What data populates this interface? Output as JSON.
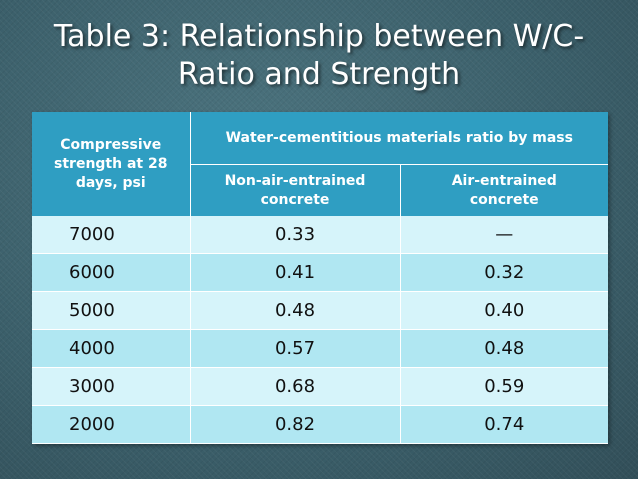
{
  "title": {
    "line1": "Table 3: Relationship between W/C-",
    "line2": "Ratio and Strength"
  },
  "table": {
    "row_header": [
      "Compressive",
      "strength at 28",
      "days, psi"
    ],
    "group_header": "Water-cementitious materials ratio by mass",
    "sub_headers": [
      [
        "Non-air-entrained",
        "concrete"
      ],
      [
        "Air-entrained",
        "concrete"
      ]
    ],
    "rows": [
      [
        "7000",
        "0.33",
        "—"
      ],
      [
        "6000",
        "0.41",
        "0.32"
      ],
      [
        "5000",
        "0.48",
        "0.40"
      ],
      [
        "4000",
        "0.57",
        "0.48"
      ],
      [
        "3000",
        "0.68",
        "0.59"
      ],
      [
        "2000",
        "0.82",
        "0.74"
      ]
    ]
  },
  "colors": {
    "background": "#3f6470",
    "header": "#2f9ec2",
    "row_light": "#d6f4fa",
    "row_dark": "#b0e7f2"
  }
}
